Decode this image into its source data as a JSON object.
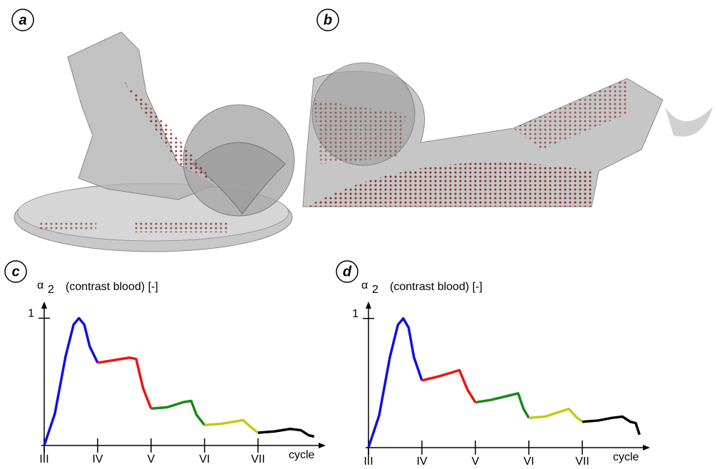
{
  "figure": {
    "panels": [
      {
        "label": "a"
      },
      {
        "label": "b"
      }
    ]
  },
  "chart_data": [
    {
      "type": "line",
      "label": "c",
      "ylabel": "α",
      "ylabel_subscript": "2",
      "ylabel_unit": "(contrast blood) [-]",
      "xlabel": "cycle",
      "xlim": [
        3,
        8.24
      ],
      "ylim": [
        0,
        1.12
      ],
      "yticks": [
        1
      ],
      "xticks": [
        {
          "value": 3,
          "label": "III"
        },
        {
          "value": 4,
          "label": "IV"
        },
        {
          "value": 5,
          "label": "V"
        },
        {
          "value": 6,
          "label": "VI"
        },
        {
          "value": 7,
          "label": "VII"
        }
      ],
      "series": [
        {
          "color": "#1010e0",
          "x": [
            3,
            3.2,
            3.4,
            3.55,
            3.65,
            3.75,
            3.85,
            4
          ],
          "values": [
            0,
            0.25,
            0.7,
            0.95,
            1.0,
            0.95,
            0.78,
            0.65
          ]
        },
        {
          "color": "#ee1111",
          "x": [
            4,
            4.3,
            4.6,
            4.72,
            4.85,
            5
          ],
          "values": [
            0.65,
            0.67,
            0.69,
            0.68,
            0.45,
            0.29
          ]
        },
        {
          "color": "#158a15",
          "x": [
            5,
            5.3,
            5.6,
            5.75,
            5.85,
            6
          ],
          "values": [
            0.29,
            0.3,
            0.34,
            0.35,
            0.24,
            0.16
          ]
        },
        {
          "color": "#c8c812",
          "x": [
            6,
            6.3,
            6.6,
            6.72,
            6.85,
            7
          ],
          "values": [
            0.16,
            0.17,
            0.19,
            0.2,
            0.15,
            0.1
          ]
        },
        {
          "color": "#000000",
          "x": [
            7,
            7.3,
            7.6,
            7.8,
            7.95,
            8.05
          ],
          "values": [
            0.1,
            0.11,
            0.13,
            0.12,
            0.08,
            0.07
          ]
        }
      ]
    },
    {
      "type": "line",
      "label": "d",
      "ylabel": "α",
      "ylabel_subscript": "2",
      "ylabel_unit": "(contrast blood) [-]",
      "xlabel": "cycle",
      "xlim": [
        3,
        8.24
      ],
      "ylim": [
        0,
        1.12
      ],
      "yticks": [
        1
      ],
      "xticks": [
        {
          "value": 3,
          "label": "III"
        },
        {
          "value": 4,
          "label": "IV"
        },
        {
          "value": 5,
          "label": "V"
        },
        {
          "value": 6,
          "label": "VI"
        },
        {
          "value": 7,
          "label": "VII"
        }
      ],
      "series": [
        {
          "color": "#1010e0",
          "x": [
            3,
            3.2,
            3.4,
            3.55,
            3.65,
            3.75,
            3.85,
            4
          ],
          "values": [
            0,
            0.25,
            0.7,
            0.95,
            1.0,
            0.93,
            0.7,
            0.52
          ]
        },
        {
          "color": "#ee1111",
          "x": [
            4,
            4.3,
            4.55,
            4.7,
            4.85,
            5
          ],
          "values": [
            0.52,
            0.55,
            0.58,
            0.6,
            0.45,
            0.35
          ]
        },
        {
          "color": "#158a15",
          "x": [
            5,
            5.3,
            5.6,
            5.8,
            5.9,
            6
          ],
          "values": [
            0.35,
            0.37,
            0.4,
            0.42,
            0.3,
            0.23
          ]
        },
        {
          "color": "#c8c812",
          "x": [
            6,
            6.3,
            6.6,
            6.75,
            6.88,
            7
          ],
          "values": [
            0.23,
            0.24,
            0.28,
            0.3,
            0.24,
            0.2
          ]
        },
        {
          "color": "#000000",
          "x": [
            7,
            7.3,
            7.55,
            7.75,
            7.9,
            8.0,
            8.07
          ],
          "values": [
            0.2,
            0.21,
            0.23,
            0.24,
            0.2,
            0.19,
            0.1
          ]
        }
      ]
    }
  ]
}
